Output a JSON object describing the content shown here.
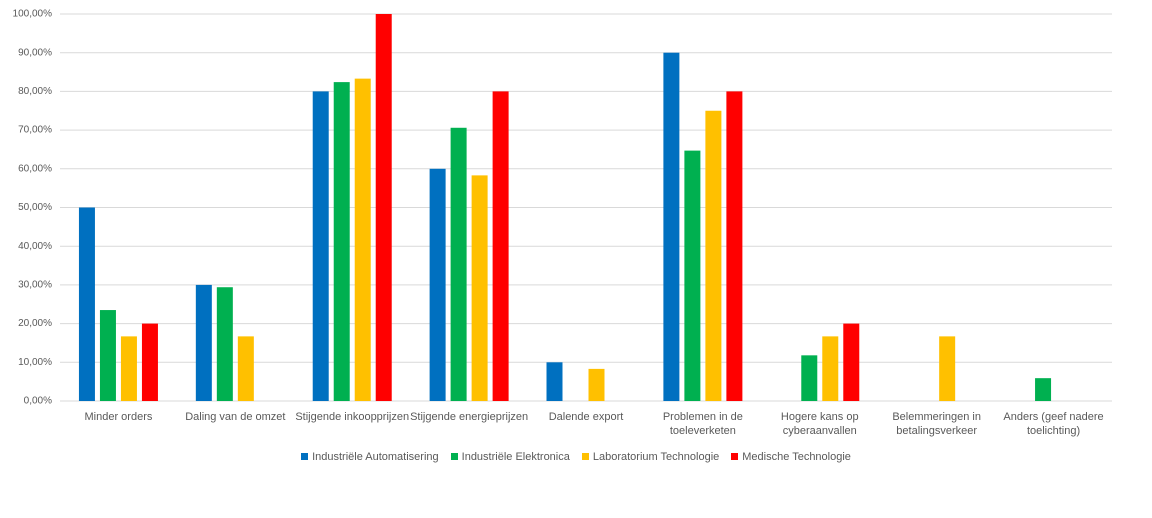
{
  "chart_data": {
    "type": "bar",
    "categories": [
      "Minder orders",
      "Daling van de omzet",
      "Stijgende inkoopprijzen",
      "Stijgende energieprijzen",
      "Dalende export",
      "Problemen in de toeleverketen",
      "Hogere kans op cyberaanvallen",
      "Belemmeringen in betalingsverkeer",
      "Anders (geef nadere toelichting)"
    ],
    "series": [
      {
        "name": "Industriële Automatisering",
        "color": "#0070c0",
        "values": [
          50,
          30,
          80,
          60,
          10,
          90,
          0,
          0,
          0
        ]
      },
      {
        "name": "Industriële Elektronica",
        "color": "#00b050",
        "values": [
          23.5,
          29.4,
          82.4,
          70.6,
          0,
          64.7,
          11.8,
          0,
          5.9
        ]
      },
      {
        "name": "Laboratorium Technologie",
        "color": "#ffc000",
        "values": [
          16.7,
          16.7,
          83.3,
          58.3,
          8.3,
          75,
          16.7,
          16.7,
          0
        ]
      },
      {
        "name": "Medische Technologie",
        "color": "#ff0000",
        "values": [
          20,
          0,
          100,
          80,
          0,
          80,
          20,
          0,
          0
        ]
      }
    ],
    "ylim": [
      0,
      100
    ],
    "yticks": [
      {
        "value": 0,
        "label": "0,00%"
      },
      {
        "value": 10,
        "label": "10,00%"
      },
      {
        "value": 20,
        "label": "20,00%"
      },
      {
        "value": 30,
        "label": "30,00%"
      },
      {
        "value": 40,
        "label": "40,00%"
      },
      {
        "value": 50,
        "label": "50,00%"
      },
      {
        "value": 60,
        "label": "60,00%"
      },
      {
        "value": 70,
        "label": "70,00%"
      },
      {
        "value": 80,
        "label": "80,00%"
      },
      {
        "value": 90,
        "label": "90,00%"
      },
      {
        "value": 100,
        "label": "100,00%"
      }
    ],
    "grid": true,
    "legend": "bottom"
  }
}
